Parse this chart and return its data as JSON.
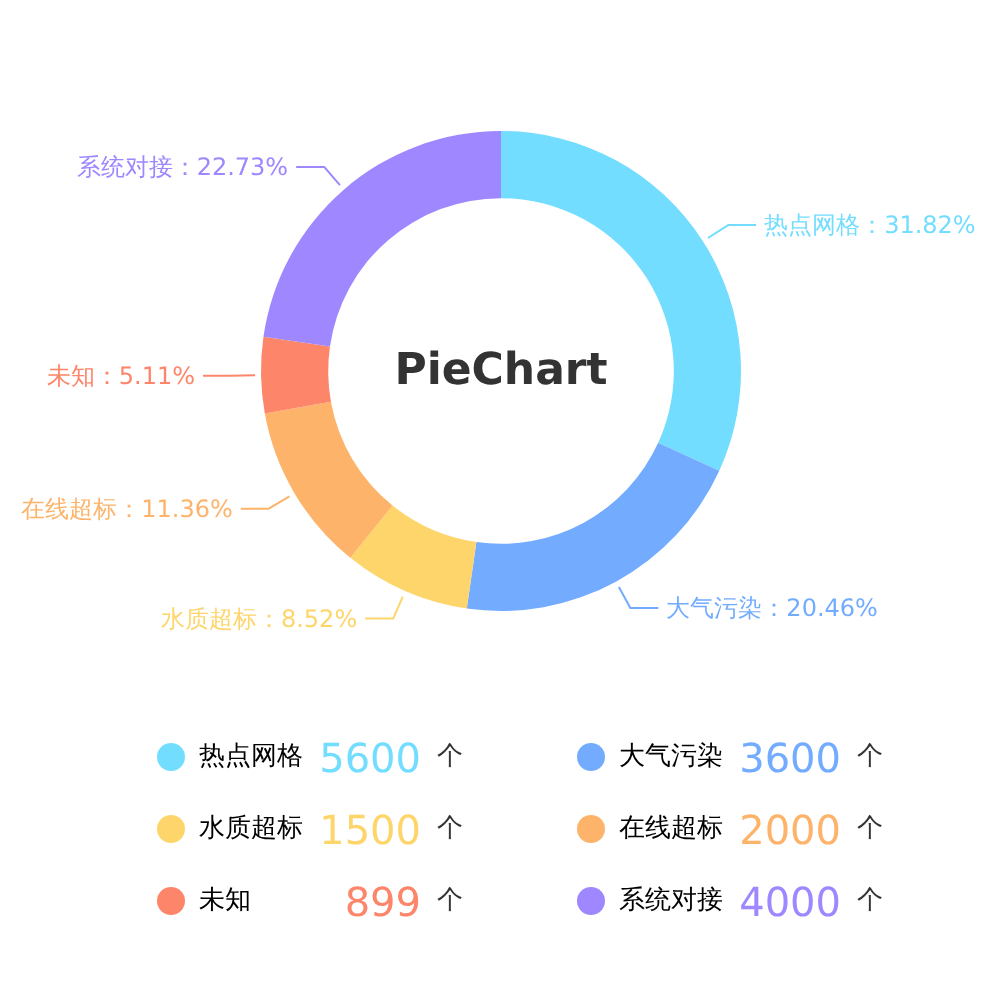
{
  "chart_data": {
    "type": "donut",
    "title": "PieChart",
    "categories": [
      "热点网格",
      "大气污染",
      "水质超标",
      "在线超标",
      "未知",
      "系统对接"
    ],
    "values": [
      5600,
      3600,
      1500,
      2000,
      899,
      4000
    ],
    "colors": [
      "#73ddff",
      "#73acff",
      "#fdd56a",
      "#fdb36a",
      "#fd866a",
      "#9e87ff"
    ],
    "value_labels": [
      "5600",
      "3600",
      "1500",
      "2000",
      "899",
      "4000"
    ],
    "legend": "bottom",
    "annotations": [
      {
        "text": "热点网格：31.82%",
        "x": "热点网格"
      },
      {
        "text": "大气污染：20.46%",
        "x": "大气污染"
      },
      {
        "text": "水质超标：8.52%",
        "x": "水质超标"
      },
      {
        "text": "在线超标：11.36%",
        "x": "在线超标"
      },
      {
        "text": "未知：5.11%",
        "x": "未知"
      },
      {
        "text": "系统对接：22.73%",
        "x": "系统对接"
      },
      "个"
    ]
  }
}
